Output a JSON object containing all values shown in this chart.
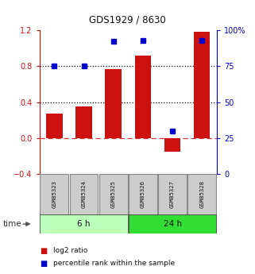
{
  "title": "GDS1929 / 8630",
  "samples": [
    "GSM85323",
    "GSM85324",
    "GSM85325",
    "GSM85326",
    "GSM85327",
    "GSM85328"
  ],
  "log2_ratio": [
    0.27,
    0.35,
    0.77,
    0.92,
    -0.15,
    1.18
  ],
  "percentile_rank": [
    75,
    75,
    92,
    93,
    30,
    93
  ],
  "groups": [
    {
      "label": "6 h",
      "indices": [
        0,
        1,
        2
      ],
      "color": "#bbffbb"
    },
    {
      "label": "24 h",
      "indices": [
        3,
        4,
        5
      ],
      "color": "#33dd33"
    }
  ],
  "bar_color": "#cc1111",
  "dot_color": "#0000cc",
  "left_ylim": [
    -0.4,
    1.2
  ],
  "right_ylim": [
    0,
    100
  ],
  "left_yticks": [
    -0.4,
    0.0,
    0.4,
    0.8,
    1.2
  ],
  "right_yticks": [
    0,
    25,
    50,
    75,
    100
  ],
  "right_yticklabels": [
    "0",
    "25",
    "50",
    "75",
    "100%"
  ],
  "dashed_zero_color": "#cc3333",
  "dotted_line_color": "#000000",
  "bg_color": "#ffffff",
  "legend_log2": "log2 ratio",
  "legend_pct": "percentile rank within the sample",
  "time_label": "time",
  "sample_box_color": "#cccccc",
  "sample_box_edge": "#888888"
}
